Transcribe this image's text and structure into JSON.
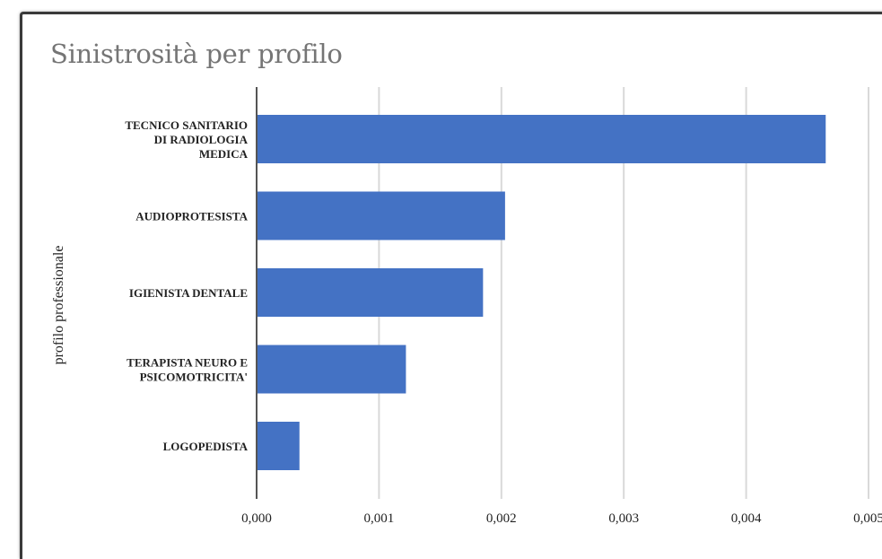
{
  "chart_data": {
    "type": "bar",
    "orientation": "horizontal",
    "title": "Sinistrosità per profilo",
    "xlabel": "",
    "ylabel": "profilo professionale",
    "categories": [
      [
        "TECNICO SANITARIO",
        "DI RADIOLOGIA",
        "MEDICA"
      ],
      [
        "AUDIOPROTESISTA"
      ],
      [
        "IGIENISTA DENTALE"
      ],
      [
        "TERAPISTA NEURO E",
        "PSICOMOTRICITA'"
      ],
      [
        "LOGOPEDISTA"
      ]
    ],
    "values": [
      0.00465,
      0.00203,
      0.00185,
      0.00122,
      0.00035
    ],
    "xlim": [
      0,
      0.005
    ],
    "xticks": [
      "0,000",
      "0,001",
      "0,002",
      "0,003",
      "0,004",
      "0,005"
    ],
    "grid": true,
    "bar_color": "#4472c4",
    "grid_color": "#d9d9d9",
    "axis_color": "#555555"
  }
}
